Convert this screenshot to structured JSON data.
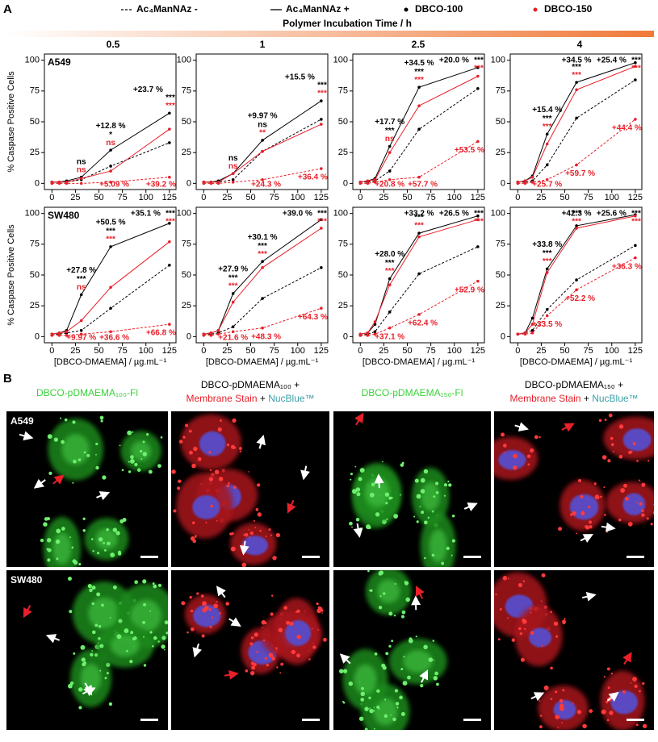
{
  "panel_a_label": "A",
  "legend": [
    {
      "label": "Ac₄ManNAz -",
      "line": "dashed"
    },
    {
      "label": "Ac₄ManNAz +",
      "line": "solid"
    },
    {
      "label": "DBCO-100",
      "color": "#000000"
    },
    {
      "label": "DBCO-150",
      "color": "#e8202a"
    }
  ],
  "time_header": {
    "title": "Polymer Incubation Time / h",
    "times": [
      "0.5",
      "1",
      "2.5",
      "4"
    ]
  },
  "chart_data": [
    {
      "type": "line",
      "label": "A549",
      "ylabel": "% Caspase Positive Cells",
      "x": [
        0,
        7.8,
        15.6,
        31.25,
        62.5,
        125
      ],
      "xlim": [
        -8,
        132
      ],
      "xticks": [
        0,
        25,
        50,
        75,
        100,
        125
      ],
      "ylim": [
        -5,
        105
      ],
      "yticks": [
        0,
        25,
        50,
        75,
        100
      ],
      "series": [
        {
          "color": "#000000",
          "line": "solid",
          "values": [
            1,
            1,
            2,
            5,
            27,
            57
          ]
        },
        {
          "color": "#000000",
          "line": "dashed",
          "values": [
            1,
            1,
            1,
            3,
            14,
            33
          ]
        },
        {
          "color": "#e8202a",
          "line": "solid",
          "values": [
            1,
            1,
            1,
            4,
            10,
            44
          ]
        },
        {
          "color": "#e8202a",
          "line": "dashed",
          "values": [
            0,
            0,
            0,
            0,
            1,
            5
          ]
        }
      ],
      "annotations": [
        {
          "text": "ns",
          "color": "#000000"
        },
        {
          "text": "ns",
          "color": "#e8202a"
        },
        {
          "text": "+12.8 %",
          "color": "#000000"
        },
        {
          "text": "*",
          "color": "#000000"
        },
        {
          "text": "ns",
          "color": "#e8202a"
        },
        {
          "text": "+23.7 %",
          "color": "#000000"
        },
        {
          "text": "***",
          "color": "#000000"
        },
        {
          "text": "***",
          "color": "#e8202a"
        },
        {
          "text": "+5.09 %",
          "color": "#e8202a"
        },
        {
          "text": "+39.2 %",
          "color": "#e8202a"
        }
      ]
    },
    {
      "type": "line",
      "x": [
        0,
        7.8,
        15.6,
        31.25,
        62.5,
        125
      ],
      "xlim": [
        -8,
        132
      ],
      "xticks": [
        0,
        25,
        50,
        75,
        100,
        125
      ],
      "ylim": [
        -5,
        105
      ],
      "yticks": [
        0,
        25,
        50,
        75,
        100
      ],
      "series": [
        {
          "color": "#000000",
          "line": "solid",
          "values": [
            1,
            1,
            2,
            8,
            35,
            67
          ]
        },
        {
          "color": "#000000",
          "line": "dashed",
          "values": [
            1,
            1,
            1,
            3,
            26,
            52
          ]
        },
        {
          "color": "#e8202a",
          "line": "solid",
          "values": [
            1,
            1,
            1,
            8,
            26,
            48
          ]
        },
        {
          "color": "#e8202a",
          "line": "dashed",
          "values": [
            0,
            0,
            0,
            1,
            3,
            12
          ]
        }
      ],
      "annotations": [
        {
          "text": "ns",
          "color": "#000000"
        },
        {
          "text": "ns",
          "color": "#e8202a"
        },
        {
          "text": "+9.97 %",
          "color": "#000000"
        },
        {
          "text": "ns",
          "color": "#000000"
        },
        {
          "text": "**",
          "color": "#e8202a"
        },
        {
          "text": "+15.5 %",
          "color": "#000000"
        },
        {
          "text": "***",
          "color": "#000000"
        },
        {
          "text": "***",
          "color": "#e8202a"
        },
        {
          "text": "+24.3 %",
          "color": "#e8202a"
        },
        {
          "text": "+36.4 %",
          "color": "#e8202a"
        }
      ]
    },
    {
      "type": "line",
      "x": [
        0,
        7.8,
        15.6,
        31.25,
        62.5,
        125
      ],
      "xlim": [
        -8,
        132
      ],
      "xticks": [
        0,
        25,
        50,
        75,
        100,
        125
      ],
      "ylim": [
        -5,
        105
      ],
      "yticks": [
        0,
        25,
        50,
        75,
        100
      ],
      "series": [
        {
          "color": "#000000",
          "line": "solid",
          "values": [
            1,
            2,
            4,
            30,
            78,
            94
          ]
        },
        {
          "color": "#000000",
          "line": "dashed",
          "values": [
            1,
            1,
            2,
            10,
            44,
            77
          ]
        },
        {
          "color": "#e8202a",
          "line": "solid",
          "values": [
            1,
            2,
            3,
            25,
            63,
            87
          ]
        },
        {
          "color": "#e8202a",
          "line": "dashed",
          "values": [
            0,
            0,
            1,
            3,
            5,
            34
          ]
        }
      ],
      "annotations": [
        {
          "text": "+17.7 %",
          "color": "#000000"
        },
        {
          "text": "***",
          "color": "#000000"
        },
        {
          "text": "ns",
          "color": "#e8202a"
        },
        {
          "text": "+34.5 %",
          "color": "#000000"
        },
        {
          "text": "***",
          "color": "#000000"
        },
        {
          "text": "***",
          "color": "#e8202a"
        },
        {
          "text": "+20.0 %",
          "color": "#000000"
        },
        {
          "text": "***",
          "color": "#000000"
        },
        {
          "text": "***",
          "color": "#e8202a"
        },
        {
          "text": "+20.8 %",
          "color": "#e8202a"
        },
        {
          "text": "+57.7 %",
          "color": "#e8202a"
        },
        {
          "text": "+53.5 %",
          "color": "#e8202a"
        }
      ]
    },
    {
      "type": "line",
      "x": [
        0,
        7.8,
        15.6,
        31.25,
        62.5,
        125
      ],
      "xlim": [
        -8,
        132
      ],
      "xticks": [
        0,
        25,
        50,
        75,
        100,
        125
      ],
      "ylim": [
        -5,
        105
      ],
      "yticks": [
        0,
        25,
        50,
        75,
        100
      ],
      "series": [
        {
          "color": "#000000",
          "line": "solid",
          "values": [
            1,
            2,
            6,
            40,
            82,
            98
          ]
        },
        {
          "color": "#000000",
          "line": "dashed",
          "values": [
            1,
            1,
            2,
            15,
            53,
            84
          ]
        },
        {
          "color": "#e8202a",
          "line": "solid",
          "values": [
            1,
            2,
            5,
            32,
            76,
            95
          ]
        },
        {
          "color": "#e8202a",
          "line": "dashed",
          "values": [
            0,
            0,
            1,
            3,
            15,
            52
          ]
        }
      ],
      "annotations": [
        {
          "text": "+15.4 %",
          "color": "#000000"
        },
        {
          "text": "***",
          "color": "#000000"
        },
        {
          "text": "***",
          "color": "#e8202a"
        },
        {
          "text": "+34.5 %",
          "color": "#000000"
        },
        {
          "text": "***",
          "color": "#000000"
        },
        {
          "text": "***",
          "color": "#e8202a"
        },
        {
          "text": "+25.4 %",
          "color": "#000000"
        },
        {
          "text": "***",
          "color": "#000000"
        },
        {
          "text": "***",
          "color": "#e8202a"
        },
        {
          "text": "+25.7 %",
          "color": "#e8202a"
        },
        {
          "text": "+59.7 %",
          "color": "#e8202a"
        },
        {
          "text": "+44.4 %",
          "color": "#e8202a"
        }
      ]
    },
    {
      "type": "line",
      "label": "SW480",
      "ylabel": "% Caspase Positive Cells",
      "xlabel": "[DBCO-DMAEMA] / µg.mL⁻¹",
      "x": [
        0,
        7.8,
        15.6,
        31.25,
        62.5,
        125
      ],
      "xlim": [
        -8,
        132
      ],
      "xticks": [
        0,
        25,
        50,
        75,
        100,
        125
      ],
      "ylim": [
        -5,
        105
      ],
      "yticks": [
        0,
        25,
        50,
        75,
        100
      ],
      "series": [
        {
          "color": "#000000",
          "line": "solid",
          "values": [
            2,
            3,
            5,
            34,
            73,
            92
          ]
        },
        {
          "color": "#000000",
          "line": "dashed",
          "values": [
            2,
            2,
            3,
            5,
            23,
            58
          ]
        },
        {
          "color": "#e8202a",
          "line": "solid",
          "values": [
            2,
            3,
            4,
            13,
            40,
            77
          ]
        },
        {
          "color": "#e8202a",
          "line": "dashed",
          "values": [
            1,
            1,
            1,
            2,
            4,
            10
          ]
        }
      ],
      "annotations": [
        {
          "text": "+27.8 %",
          "color": "#000000"
        },
        {
          "text": "***",
          "color": "#000000"
        },
        {
          "text": "ns",
          "color": "#e8202a"
        },
        {
          "text": "+50.5 %",
          "color": "#000000"
        },
        {
          "text": "***",
          "color": "#000000"
        },
        {
          "text": "***",
          "color": "#e8202a"
        },
        {
          "text": "+35.1 %",
          "color": "#000000"
        },
        {
          "text": "***",
          "color": "#000000"
        },
        {
          "text": "***",
          "color": "#e8202a"
        },
        {
          "text": "+9.97 %",
          "color": "#e8202a"
        },
        {
          "text": "+36.6 %",
          "color": "#e8202a"
        },
        {
          "text": "+66.8 %",
          "color": "#e8202a"
        }
      ]
    },
    {
      "type": "line",
      "xlabel": "[DBCO-DMAEMA] / µg.mL⁻¹",
      "x": [
        0,
        7.8,
        15.6,
        31.25,
        62.5,
        125
      ],
      "xlim": [
        -8,
        132
      ],
      "xticks": [
        0,
        25,
        50,
        75,
        100,
        125
      ],
      "ylim": [
        -5,
        105
      ],
      "yticks": [
        0,
        25,
        50,
        75,
        100
      ],
      "series": [
        {
          "color": "#000000",
          "line": "solid",
          "values": [
            2,
            3,
            5,
            35,
            61,
            95
          ]
        },
        {
          "color": "#000000",
          "line": "dashed",
          "values": [
            2,
            2,
            3,
            8,
            31,
            56
          ]
        },
        {
          "color": "#e8202a",
          "line": "solid",
          "values": [
            2,
            3,
            5,
            28,
            56,
            88
          ]
        },
        {
          "color": "#e8202a",
          "line": "dashed",
          "values": [
            1,
            1,
            2,
            4,
            7,
            23
          ]
        }
      ],
      "annotations": [
        {
          "text": "+27.9 %",
          "color": "#000000"
        },
        {
          "text": "***",
          "color": "#000000"
        },
        {
          "text": "***",
          "color": "#e8202a"
        },
        {
          "text": "+30.1 %",
          "color": "#000000"
        },
        {
          "text": "***",
          "color": "#000000"
        },
        {
          "text": "***",
          "color": "#e8202a"
        },
        {
          "text": "+39.0 %",
          "color": "#000000"
        },
        {
          "text": "***",
          "color": "#000000"
        },
        {
          "text": "***",
          "color": "#e8202a"
        },
        {
          "text": "+21.6 %",
          "color": "#e8202a"
        },
        {
          "text": "+48.3 %",
          "color": "#e8202a"
        },
        {
          "text": "+64.3 %",
          "color": "#e8202a"
        }
      ]
    },
    {
      "type": "line",
      "xlabel": "[DBCO-DMAEMA] / µg.mL⁻¹",
      "x": [
        0,
        7.8,
        15.6,
        31.25,
        62.5,
        125
      ],
      "xlim": [
        -8,
        132
      ],
      "xticks": [
        0,
        25,
        50,
        75,
        100,
        125
      ],
      "ylim": [
        -5,
        105
      ],
      "yticks": [
        0,
        25,
        50,
        75,
        100
      ],
      "series": [
        {
          "color": "#000000",
          "line": "solid",
          "values": [
            2,
            3,
            10,
            47,
            84,
            98
          ]
        },
        {
          "color": "#000000",
          "line": "dashed",
          "values": [
            1,
            2,
            4,
            20,
            51,
            73
          ]
        },
        {
          "color": "#e8202a",
          "line": "solid",
          "values": [
            2,
            3,
            12,
            42,
            81,
            95
          ]
        },
        {
          "color": "#e8202a",
          "line": "dashed",
          "values": [
            1,
            1,
            2,
            7,
            18,
            45
          ]
        }
      ],
      "annotations": [
        {
          "text": "+28.0 %",
          "color": "#000000"
        },
        {
          "text": "***",
          "color": "#000000"
        },
        {
          "text": "***",
          "color": "#e8202a"
        },
        {
          "text": "+33.2 %",
          "color": "#000000"
        },
        {
          "text": "***",
          "color": "#000000"
        },
        {
          "text": "***",
          "color": "#e8202a"
        },
        {
          "text": "+26.5 %",
          "color": "#000000"
        },
        {
          "text": "***",
          "color": "#000000"
        },
        {
          "text": "***",
          "color": "#e8202a"
        },
        {
          "text": "+37.1 %",
          "color": "#e8202a"
        },
        {
          "text": "+62.4 %",
          "color": "#e8202a"
        },
        {
          "text": "+52.9 %",
          "color": "#e8202a"
        }
      ]
    },
    {
      "type": "line",
      "xlabel": "[DBCO-DMAEMA] / µg.mL⁻¹",
      "x": [
        0,
        7.8,
        15.6,
        31.25,
        62.5,
        125
      ],
      "xlim": [
        -8,
        132
      ],
      "xticks": [
        0,
        25,
        50,
        75,
        100,
        125
      ],
      "ylim": [
        -5,
        105
      ],
      "yticks": [
        0,
        25,
        50,
        75,
        100
      ],
      "series": [
        {
          "color": "#000000",
          "line": "solid",
          "values": [
            2,
            3,
            15,
            55,
            90,
            99
          ]
        },
        {
          "color": "#000000",
          "line": "dashed",
          "values": [
            2,
            3,
            5,
            22,
            46,
            74
          ]
        },
        {
          "color": "#e8202a",
          "line": "solid",
          "values": [
            2,
            3,
            10,
            52,
            88,
            98
          ]
        },
        {
          "color": "#e8202a",
          "line": "dashed",
          "values": [
            2,
            2,
            3,
            17,
            38,
            64
          ]
        }
      ],
      "annotations": [
        {
          "text": "+33.8 %",
          "color": "#000000"
        },
        {
          "text": "***",
          "color": "#000000"
        },
        {
          "text": "***",
          "color": "#e8202a"
        },
        {
          "text": "+42.3 %",
          "color": "#000000"
        },
        {
          "text": "***",
          "color": "#000000"
        },
        {
          "text": "***",
          "color": "#e8202a"
        },
        {
          "text": "+25.6 %",
          "color": "#000000"
        },
        {
          "text": "***",
          "color": "#000000"
        },
        {
          "text": "***",
          "color": "#e8202a"
        },
        {
          "text": "+33.5 %",
          "color": "#e8202a"
        },
        {
          "text": "+52.2 %",
          "color": "#e8202a"
        },
        {
          "text": "+36.3 %",
          "color": "#e8202a"
        }
      ]
    }
  ],
  "panel_b": {
    "label": "B",
    "rows": [
      "A549",
      "SW480"
    ],
    "columns": [
      {
        "lines": [
          [
            {
              "text": "DBCO-pDMAEMA₁₀₀-Fl",
              "color": "#3ad13a"
            }
          ]
        ],
        "stain": "green"
      },
      {
        "lines": [
          [
            {
              "text": "DBCO-pDMAEMA₁₀₀ +",
              "color": "#000000"
            }
          ],
          [
            {
              "text": "Membrane Stain",
              "color": "#e8202a"
            },
            {
              "text": " + ",
              "color": "#000000"
            },
            {
              "text": "NucBlue™",
              "color": "#3a9fa8"
            }
          ]
        ],
        "stain": "red"
      },
      {
        "lines": [
          [
            {
              "text": "DBCO-pDMAEMA₁₅₀-Fl",
              "color": "#3ad13a"
            }
          ]
        ],
        "stain": "green"
      },
      {
        "lines": [
          [
            {
              "text": "DBCO-pDMAEMA₁₅₀ +",
              "color": "#000000"
            }
          ],
          [
            {
              "text": "Membrane Stain",
              "color": "#e8202a"
            },
            {
              "text": " + ",
              "color": "#000000"
            },
            {
              "text": "NucBlue™",
              "color": "#3a9fa8"
            }
          ]
        ],
        "stain": "red"
      }
    ]
  }
}
